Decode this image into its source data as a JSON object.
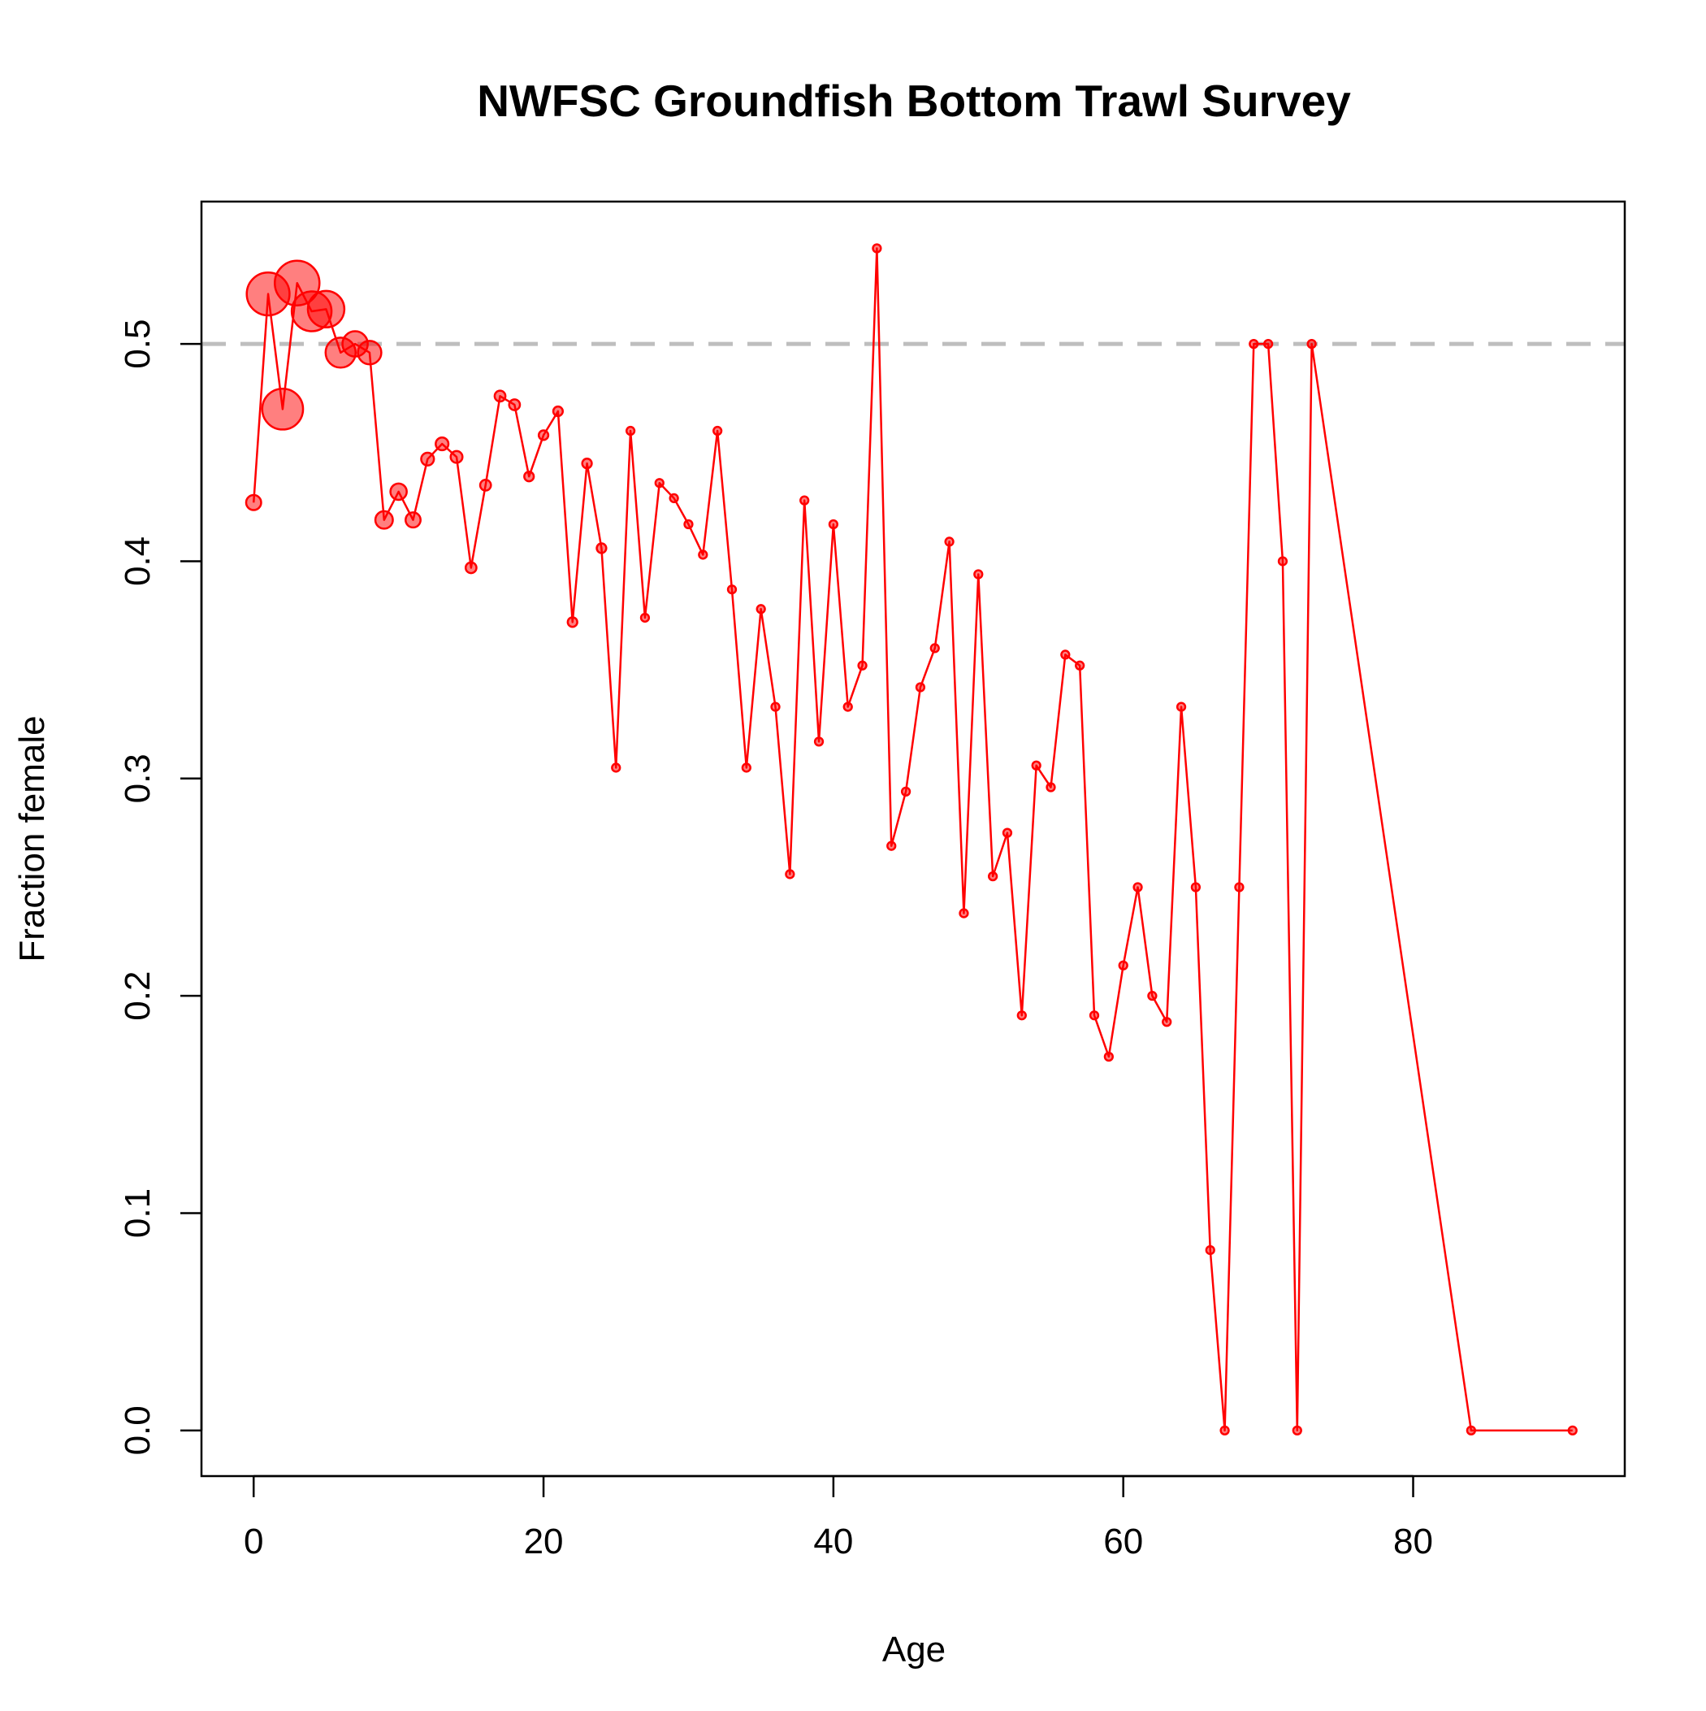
{
  "chart_data": {
    "type": "line",
    "title": "NWFSC Groundfish Bottom Trawl Survey",
    "xlabel": "Age",
    "ylabel": "Fraction female",
    "xlim": [
      -3.6,
      94.6
    ],
    "ylim": [
      -0.021,
      0.5655
    ],
    "x_ticks": [
      "0",
      "20",
      "40",
      "60",
      "80"
    ],
    "x_tick_values": [
      0,
      20,
      40,
      60,
      80
    ],
    "y_ticks": [
      "0.0",
      "0.1",
      "0.2",
      "0.3",
      "0.4",
      "0.5"
    ],
    "y_tick_values": [
      0.0,
      0.1,
      0.2,
      0.3,
      0.4,
      0.5
    ],
    "reference_line": {
      "y": 0.5,
      "style": "dashed",
      "color": "#bebebe"
    },
    "grid": false,
    "legend": "none",
    "colors": {
      "line": "#ff0000",
      "point_fill": "#ff000080",
      "point_stroke": "#ff0000"
    },
    "series": [
      {
        "x": [
          0,
          1,
          2,
          3,
          4,
          5,
          6,
          7,
          8,
          9,
          10,
          11,
          12,
          13,
          14,
          15,
          16,
          17,
          18,
          19,
          20,
          21,
          22,
          23,
          24,
          25,
          26,
          27,
          28,
          29,
          30,
          31,
          32,
          33,
          34,
          35,
          36,
          37,
          38,
          39,
          40,
          41,
          42,
          43,
          44,
          45,
          46,
          47,
          48,
          49,
          50,
          51,
          52,
          53,
          54,
          55,
          56,
          57,
          58,
          59,
          60,
          61,
          62,
          63,
          64,
          65,
          66,
          67,
          68,
          69,
          70,
          71,
          72,
          73,
          84,
          91
        ],
        "y": [
          0.427,
          0.523,
          0.47,
          0.528,
          0.515,
          0.516,
          0.496,
          0.5,
          0.496,
          0.419,
          0.432,
          0.419,
          0.447,
          0.454,
          0.448,
          0.397,
          0.435,
          0.476,
          0.472,
          0.439,
          0.458,
          0.469,
          0.372,
          0.445,
          0.406,
          0.305,
          0.46,
          0.374,
          0.436,
          0.429,
          0.417,
          0.403,
          0.46,
          0.387,
          0.305,
          0.378,
          0.333,
          0.256,
          0.428,
          0.317,
          0.417,
          0.333,
          0.352,
          0.544,
          0.269,
          0.294,
          0.342,
          0.36,
          0.409,
          0.238,
          0.394,
          0.255,
          0.275,
          0.191,
          0.306,
          0.296,
          0.357,
          0.352,
          0.191,
          0.172,
          0.214,
          0.25,
          0.2,
          0.188,
          0.333,
          0.25,
          0.083,
          0.0,
          0.25,
          0.5,
          0.5,
          0.4,
          0.0,
          0.5,
          0.0,
          0.0
        ],
        "sample_size": [
          8,
          100,
          90,
          110,
          85,
          70,
          45,
          30,
          25,
          12,
          10,
          8,
          5,
          5,
          4,
          3,
          3,
          3,
          3,
          2,
          2,
          2,
          2,
          2,
          2,
          1,
          1,
          1,
          1,
          1,
          1,
          1,
          1,
          1,
          1,
          1,
          1,
          1,
          1,
          1,
          1,
          1,
          1,
          1,
          1,
          1,
          1,
          1,
          1,
          1,
          1,
          1,
          1,
          1,
          1,
          1,
          1,
          1,
          1,
          1,
          1,
          1,
          1,
          1,
          1,
          1,
          1,
          1,
          1,
          1,
          1,
          1,
          1,
          1,
          1,
          1
        ]
      }
    ]
  }
}
